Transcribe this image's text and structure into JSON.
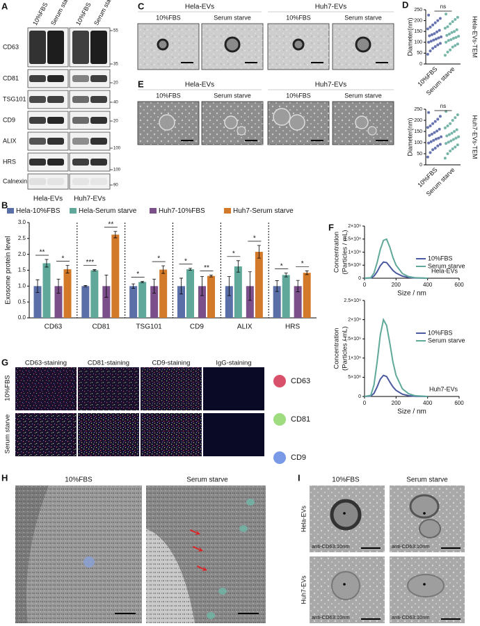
{
  "panels": {
    "letters": [
      "A",
      "B",
      "C",
      "D",
      "E",
      "F",
      "G",
      "H",
      "I"
    ]
  },
  "blot": {
    "columns": [
      "10%FBS",
      "Serum starve",
      "10%FBS",
      "Serum starve"
    ],
    "proteins": [
      "CD63",
      "CD81",
      "TSG101",
      "CD9",
      "ALIX",
      "HRS",
      "Calnexin"
    ],
    "markers": [
      55,
      35,
      20,
      40,
      20,
      100,
      100,
      90
    ],
    "groups": [
      "Hela-EVs",
      "Huh7-EVs"
    ]
  },
  "tem": {
    "groups": [
      "Hela-EVs",
      "Huh7-EVs"
    ],
    "conditions": [
      "10%FBS",
      "Serum starve",
      "10%FBS",
      "Serum starve"
    ]
  },
  "cryo": {
    "groups": [
      "Hela-EVs",
      "Huh7-EVs"
    ],
    "conditions": [
      "10%FBS",
      "Serum starve",
      "10%FBS",
      "Serum starve"
    ]
  },
  "staining": {
    "columns": [
      "CD63-staining",
      "CD81-staining",
      "CD9-staining",
      "IgG-staining"
    ],
    "rows": [
      "10%FBS",
      "Serum starve"
    ],
    "legend": [
      {
        "name": "CD63",
        "color": "#d9506a"
      },
      {
        "name": "CD81",
        "color": "#9fdc80"
      },
      {
        "name": "CD9",
        "color": "#7a9ae8"
      }
    ]
  },
  "cell_tem": {
    "columns": [
      "10%FBS",
      "Serum starve"
    ]
  },
  "immunogold": {
    "columns": [
      "10%FBS",
      "Serum starve"
    ],
    "rows": [
      "Hela-EVs",
      "Huh7-EVs"
    ],
    "captions": [
      "anti-CD63:10nm",
      "anti-CD63:10nm",
      "anti-CD63:10nm",
      "anti-CD63:10nm"
    ]
  },
  "chart_data": [
    {
      "type": "bar",
      "ylabel": "Exosome protein level",
      "categories": [
        "CD63",
        "CD81",
        "TSG101",
        "CD9",
        "ALIX",
        "HRS"
      ],
      "series": [
        {
          "name": "Hela-10%FBS",
          "color": "#5a6ea8",
          "values": [
            1,
            1,
            1,
            1,
            1,
            1
          ],
          "errors": [
            0.2,
            0.02,
            0.07,
            0.25,
            0.3,
            0.17
          ]
        },
        {
          "name": "Hela-Serum starve",
          "color": "#5fa89a",
          "values": [
            1.72,
            1.5,
            1.13,
            1.53,
            1.62,
            1.35
          ],
          "errors": [
            0.12,
            0.02,
            0.02,
            0.03,
            0.18,
            0.06
          ]
        },
        {
          "name": "Huh7-10%FBS",
          "color": "#7b4f8a",
          "values": [
            1,
            1,
            1,
            1,
            1,
            1
          ],
          "errors": [
            0.22,
            0.35,
            0.22,
            0.3,
            0.45,
            0.18
          ]
        },
        {
          "name": "Huh7-Serum starve",
          "color": "#d37a2a",
          "values": [
            1.53,
            2.62,
            1.52,
            1.32,
            2.08,
            1.42
          ],
          "errors": [
            0.12,
            0.1,
            0.12,
            0.03,
            0.2,
            0.06
          ]
        }
      ],
      "significance": [
        [
          "**",
          "*"
        ],
        [
          "***",
          "**"
        ],
        [
          "*",
          "*"
        ],
        [
          "*",
          "**"
        ],
        [
          "*",
          "*"
        ],
        [
          "*",
          "*"
        ]
      ],
      "ylim": [
        0,
        3
      ],
      "yticks": [
        {
          "value": 0,
          "label": "0.0"
        },
        0.5,
        {
          "value": 1,
          "label": "1.0"
        },
        1.5,
        {
          "value": 2,
          "label": "2.0"
        },
        2.5,
        {
          "value": 3,
          "label": "3.0"
        }
      ]
    },
    {
      "type": "strip",
      "title": "Hela-EVs-TEM",
      "ylabel": "Diameter(nm)",
      "annotation": "ns",
      "categories": [
        "10%FBS",
        "Serum starve"
      ],
      "colors": [
        "#4b5aa0",
        "#5fa89a"
      ],
      "values": [
        [
          45,
          60,
          72,
          80,
          88,
          95,
          100,
          105,
          110,
          115,
          120,
          125,
          130,
          135,
          140,
          148,
          155,
          162,
          170,
          180,
          190,
          200,
          210,
          225
        ],
        [
          40,
          55,
          65,
          78,
          85,
          92,
          100,
          108,
          112,
          118,
          122,
          128,
          132,
          138,
          145,
          150,
          158,
          165,
          172,
          185,
          195,
          205,
          215,
          230
        ]
      ],
      "ylim": [
        0,
        250
      ],
      "yticks": [
        0,
        50,
        100,
        150,
        200,
        250
      ]
    },
    {
      "type": "strip",
      "title": "Huh7-EVs-TEM",
      "ylabel": "Diameter(nm)",
      "annotation": "ns",
      "categories": [
        "10%FBS",
        "Serum starve"
      ],
      "colors": [
        "#4b5aa0",
        "#5fa89a"
      ],
      "values": [
        [
          35,
          55,
          68,
          75,
          85,
          92,
          98,
          104,
          110,
          116,
          120,
          126,
          132,
          138,
          145,
          152,
          160,
          168,
          175,
          185,
          195,
          205,
          218,
          235
        ],
        [
          30,
          50,
          62,
          72,
          80,
          90,
          96,
          102,
          108,
          114,
          120,
          126,
          130,
          136,
          142,
          150,
          158,
          166,
          175,
          185,
          200,
          212,
          225,
          240
        ]
      ],
      "ylim": [
        0,
        250
      ],
      "yticks": [
        0,
        50,
        100,
        150,
        200,
        250
      ]
    },
    {
      "type": "line",
      "ylabel": [
        "Concentration",
        "(Particles / mL)"
      ],
      "xlabel": "Size / nm",
      "annotation": "Hela-EVs",
      "x": [
        0,
        40,
        60,
        80,
        100,
        120,
        140,
        160,
        180,
        200,
        240,
        280,
        320,
        400
      ],
      "series": [
        {
          "name": "10%FBS",
          "color": "#4b5aa0",
          "values": [
            0,
            10000000,
            80000000,
            250000000,
            480000000,
            620000000,
            600000000,
            450000000,
            300000000,
            200000000,
            80000000,
            30000000,
            10000000,
            0
          ]
        },
        {
          "name": "Serum starve",
          "color": "#5fa89a",
          "values": [
            0,
            20000000,
            200000000,
            600000000,
            1100000000,
            1450000000,
            1500000000,
            1200000000,
            800000000,
            500000000,
            180000000,
            60000000,
            20000000,
            0
          ]
        }
      ],
      "xlim": [
        0,
        600
      ],
      "xticks": [
        0,
        200,
        400,
        600
      ],
      "ylim": [
        0,
        2000000000
      ],
      "yticks": [
        0,
        {
          "value": 500000000,
          "label": "5×10⁸"
        },
        {
          "value": 1000000000,
          "label": "1×10⁹"
        },
        {
          "value": 1500000000,
          "label": "1.5×10⁹"
        },
        {
          "value": 2000000000,
          "label": "2×10⁹"
        }
      ]
    },
    {
      "type": "line",
      "ylabel": [
        "Concentration",
        "(Particles / mL)"
      ],
      "xlabel": "Size / nm",
      "annotation": "Huh7-EVs",
      "x": [
        0,
        40,
        60,
        80,
        100,
        120,
        140,
        160,
        180,
        200,
        240,
        280,
        320,
        400
      ],
      "series": [
        {
          "name": "10%FBS",
          "color": "#4b5aa0",
          "values": [
            0,
            10000000,
            80000000,
            250000000,
            450000000,
            550000000,
            520000000,
            380000000,
            250000000,
            160000000,
            60000000,
            20000000,
            5000000,
            0
          ]
        },
        {
          "name": "Serum starve",
          "color": "#5fa89a",
          "values": [
            0,
            30000000,
            300000000,
            900000000,
            1600000000,
            2000000000,
            1850000000,
            1400000000,
            900000000,
            550000000,
            200000000,
            70000000,
            20000000,
            0
          ]
        }
      ],
      "xlim": [
        0,
        600
      ],
      "xticks": [
        0,
        200,
        400,
        600
      ],
      "ylim": [
        0,
        2500000000
      ],
      "yticks": [
        0,
        {
          "value": 500000000,
          "label": "5×10⁸"
        },
        {
          "value": 1000000000,
          "label": "1×10⁹"
        },
        {
          "value": 1500000000,
          "label": "1.5×10⁹"
        },
        {
          "value": 2000000000,
          "label": "2×10⁹"
        },
        {
          "value": 2500000000,
          "label": "2.5×10⁹"
        }
      ]
    }
  ]
}
